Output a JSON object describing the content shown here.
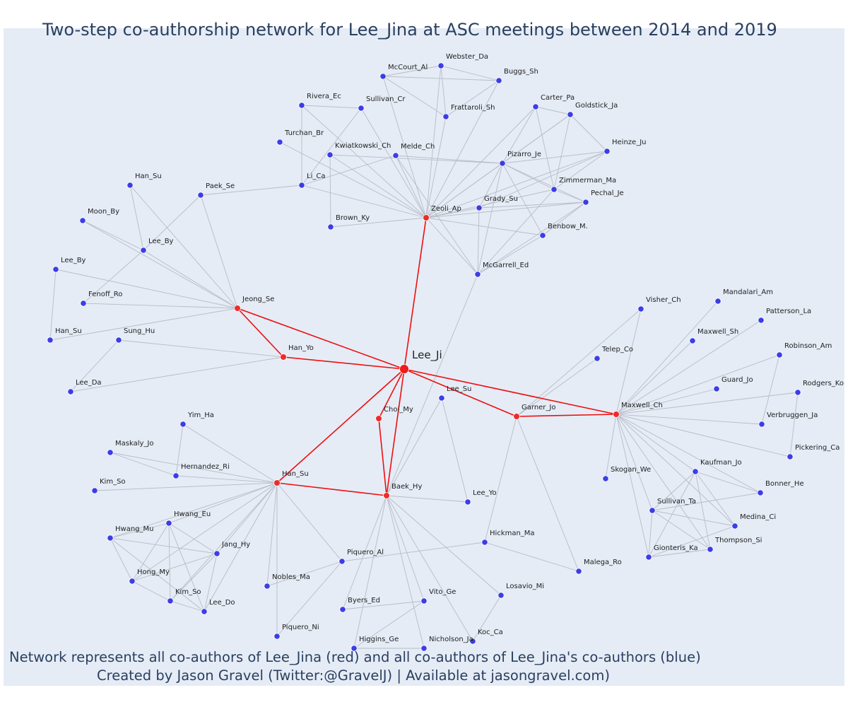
{
  "title": "Two-step co-authorship network for Lee_Jina at ASC meetings between 2014 and 2019",
  "caption_line1": "Network represents all co-authors of Lee_Jina (red) and all co-authors of Lee_Jina's co-authors (blue)",
  "caption_line2": "Created by Jason Gravel (Twitter:@GravelJ) | Available at jasongravel.com)",
  "colors": {
    "focal": "#ee1c1c",
    "coauthor": "#ee2b2b",
    "second": "#3b3ee6",
    "edge": "#b8bcc6",
    "red_edge": "#ee0f0f",
    "background": "#e5ecf6"
  },
  "nodes": [
    {
      "id": "Lee_Ji",
      "label": "Lee_Ji",
      "group": "focal"
    },
    {
      "id": "Zeoli_Ap",
      "label": "Zeoli_Ap",
      "group": "coauthor"
    },
    {
      "id": "Jeong_Se",
      "label": "Jeong_Se",
      "group": "coauthor"
    },
    {
      "id": "Han_Yo",
      "label": "Han_Yo",
      "group": "coauthor"
    },
    {
      "id": "Choi_My",
      "label": "Choi_My",
      "group": "coauthor"
    },
    {
      "id": "Han_Su_c",
      "label": "Han_Su",
      "group": "coauthor"
    },
    {
      "id": "Baek_Hy",
      "label": "Baek_Hy",
      "group": "coauthor"
    },
    {
      "id": "Garner_Jo",
      "label": "Garner_Jo",
      "group": "coauthor"
    },
    {
      "id": "Maxwell_Ch",
      "label": "Maxwell_Ch",
      "group": "coauthor"
    },
    {
      "id": "Webster_Da",
      "label": "Webster_Da",
      "group": "second"
    },
    {
      "id": "McCourt_Al",
      "label": "McCourt_Al",
      "group": "second"
    },
    {
      "id": "Buggs_Sh",
      "label": "Buggs_Sh",
      "group": "second"
    },
    {
      "id": "Rivera_Ec",
      "label": "Rivera_Ec",
      "group": "second"
    },
    {
      "id": "Sullivan_Cr",
      "label": "Sullivan_Cr",
      "group": "second"
    },
    {
      "id": "Frattaroli_Sh",
      "label": "Frattaroli_Sh",
      "group": "second"
    },
    {
      "id": "Carter_Pa",
      "label": "Carter_Pa",
      "group": "second"
    },
    {
      "id": "Goldstick_Ja",
      "label": "Goldstick_Ja",
      "group": "second"
    },
    {
      "id": "Turchan_Br",
      "label": "Turchan_Br",
      "group": "second"
    },
    {
      "id": "Kwiatkowski_Ch",
      "label": "Kwiatkowski_Ch",
      "group": "second"
    },
    {
      "id": "Melde_Ch",
      "label": "Melde_Ch",
      "group": "second"
    },
    {
      "id": "Heinze_Ju",
      "label": "Heinze_Ju",
      "group": "second"
    },
    {
      "id": "Pizarro_Je",
      "label": "Pizarro_Je",
      "group": "second"
    },
    {
      "id": "Han_Su_a",
      "label": "Han_Su",
      "group": "second"
    },
    {
      "id": "Li_Ca",
      "label": "Li_Ca",
      "group": "second"
    },
    {
      "id": "Paek_Se",
      "label": "Paek_Se",
      "group": "second"
    },
    {
      "id": "Zimmerman_Ma",
      "label": "Zimmerman_Ma",
      "group": "second"
    },
    {
      "id": "Pechal_Je",
      "label": "Pechal_Je",
      "group": "second"
    },
    {
      "id": "Grady_Su",
      "label": "Grady_Su",
      "group": "second"
    },
    {
      "id": "Moon_By",
      "label": "Moon_By",
      "group": "second"
    },
    {
      "id": "Brown_Ky",
      "label": "Brown_Ky",
      "group": "second"
    },
    {
      "id": "Lee_By_a",
      "label": "Lee_By",
      "group": "second"
    },
    {
      "id": "Benbow_M",
      "label": "Benbow_M.",
      "group": "second"
    },
    {
      "id": "Lee_By_b",
      "label": "Lee_By",
      "group": "second"
    },
    {
      "id": "McGarrell_Ed",
      "label": "McGarrell_Ed",
      "group": "second"
    },
    {
      "id": "Fenoff_Ro",
      "label": "Fenoff_Ro",
      "group": "second"
    },
    {
      "id": "Mandalari_Am",
      "label": "Mandalari_Am",
      "group": "second"
    },
    {
      "id": "Visher_Ch",
      "label": "Visher_Ch",
      "group": "second"
    },
    {
      "id": "Patterson_La",
      "label": "Patterson_La",
      "group": "second"
    },
    {
      "id": "Han_Su_b",
      "label": "Han_Su",
      "group": "second"
    },
    {
      "id": "Sung_Hu",
      "label": "Sung_Hu",
      "group": "second"
    },
    {
      "id": "Maxwell_Sh",
      "label": "Maxwell_Sh",
      "group": "second"
    },
    {
      "id": "Telep_Co",
      "label": "Telep_Co",
      "group": "second"
    },
    {
      "id": "Robinson_Am",
      "label": "Robinson_Am",
      "group": "second"
    },
    {
      "id": "Lee_Da",
      "label": "Lee_Da",
      "group": "second"
    },
    {
      "id": "Guard_Jo",
      "label": "Guard_Jo",
      "group": "second"
    },
    {
      "id": "Rodgers_Ko",
      "label": "Rodgers_Ko",
      "group": "second"
    },
    {
      "id": "Lee_Su",
      "label": "Lee_Su",
      "group": "second"
    },
    {
      "id": "Verbruggen_Ja",
      "label": "Verbruggen_Ja",
      "group": "second"
    },
    {
      "id": "Yim_Ha",
      "label": "Yim_Ha",
      "group": "second"
    },
    {
      "id": "Maskaly_Jo",
      "label": "Maskaly_Jo",
      "group": "second"
    },
    {
      "id": "Pickering_Ca",
      "label": "Pickering_Ca",
      "group": "second"
    },
    {
      "id": "Hernandez_Ri",
      "label": "Hernandez_Ri",
      "group": "second"
    },
    {
      "id": "Kaufman_Jo",
      "label": "Kaufman_Jo",
      "group": "second"
    },
    {
      "id": "Skogan_We",
      "label": "Skogan_We",
      "group": "second"
    },
    {
      "id": "Kim_So_a",
      "label": "Kim_So",
      "group": "second"
    },
    {
      "id": "Bonner_He",
      "label": "Bonner_He",
      "group": "second"
    },
    {
      "id": "Lee_Yo",
      "label": "Lee_Yo",
      "group": "second"
    },
    {
      "id": "Sullivan_Ta",
      "label": "Sullivan_Ta",
      "group": "second"
    },
    {
      "id": "Hwang_Eu",
      "label": "Hwang_Eu",
      "group": "second"
    },
    {
      "id": "Medina_Ci",
      "label": "Medina_Ci",
      "group": "second"
    },
    {
      "id": "Hwang_Mu",
      "label": "Hwang_Mu",
      "group": "second"
    },
    {
      "id": "Hickman_Ma",
      "label": "Hickman_Ma",
      "group": "second"
    },
    {
      "id": "Jang_Hy",
      "label": "Jang_Hy",
      "group": "second"
    },
    {
      "id": "Thompson_Si",
      "label": "Thompson_Si",
      "group": "second"
    },
    {
      "id": "Gionteris_Ka",
      "label": "Gionteris_Ka",
      "group": "second"
    },
    {
      "id": "Piquero_Al",
      "label": "Piquero_Al",
      "group": "second"
    },
    {
      "id": "Malega_Ro",
      "label": "Malega_Ro",
      "group": "second"
    },
    {
      "id": "Hong_My",
      "label": "Hong_My",
      "group": "second"
    },
    {
      "id": "Nobles_Ma",
      "label": "Nobles_Ma",
      "group": "second"
    },
    {
      "id": "Losavio_Mi",
      "label": "Losavio_Mi",
      "group": "second"
    },
    {
      "id": "Kim_So_b",
      "label": "Kim_So",
      "group": "second"
    },
    {
      "id": "Lee_Do",
      "label": "Lee_Do",
      "group": "second"
    },
    {
      "id": "Vito_Ge",
      "label": "Vito_Ge",
      "group": "second"
    },
    {
      "id": "Byers_Ed",
      "label": "Byers_Ed",
      "group": "second"
    },
    {
      "id": "Koc_Ca",
      "label": "Koc_Ca",
      "group": "second"
    },
    {
      "id": "Piquero_Ni",
      "label": "Piquero_Ni",
      "group": "second"
    },
    {
      "id": "Higgins_Ge",
      "label": "Higgins_Ge",
      "group": "second"
    },
    {
      "id": "Nicholson_Ja",
      "label": "Nicholson_Ja",
      "group": "second"
    }
  ],
  "edges": [
    [
      "Lee_Ji",
      "Zeoli_Ap",
      1
    ],
    [
      "Lee_Ji",
      "Jeong_Se",
      1
    ],
    [
      "Lee_Ji",
      "Han_Yo",
      1
    ],
    [
      "Lee_Ji",
      "Han_Su_c",
      1
    ],
    [
      "Lee_Ji",
      "Choi_My",
      1
    ],
    [
      "Lee_Ji",
      "Baek_Hy",
      1
    ],
    [
      "Lee_Ji",
      "Garner_Jo",
      1
    ],
    [
      "Lee_Ji",
      "Maxwell_Ch",
      1
    ],
    [
      "Jeong_Se",
      "Han_Yo",
      1
    ],
    [
      "Choi_My",
      "Baek_Hy",
      1
    ],
    [
      "Han_Su_c",
      "Baek_Hy",
      1
    ],
    [
      "Garner_Jo",
      "Maxwell_Ch",
      1
    ],
    [
      "Zeoli_Ap",
      "McCourt_Al",
      0
    ],
    [
      "Zeoli_Ap",
      "Webster_Da",
      0
    ],
    [
      "Zeoli_Ap",
      "Buggs_Sh",
      0
    ],
    [
      "Zeoli_Ap",
      "Frattaroli_Sh",
      0
    ],
    [
      "Zeoli_Ap",
      "Rivera_Ec",
      0
    ],
    [
      "Zeoli_Ap",
      "Sullivan_Cr",
      0
    ],
    [
      "Zeoli_Ap",
      "Kwiatkowski_Ch",
      0
    ],
    [
      "Zeoli_Ap",
      "Melde_Ch",
      0
    ],
    [
      "Zeoli_Ap",
      "Li_Ca",
      0
    ],
    [
      "Zeoli_Ap",
      "Brown_Ky",
      0
    ],
    [
      "Zeoli_Ap",
      "Carter_Pa",
      0
    ],
    [
      "Zeoli_Ap",
      "Goldstick_Ja",
      0
    ],
    [
      "Zeoli_Ap",
      "Pizarro_Je",
      0
    ],
    [
      "Zeoli_Ap",
      "Heinze_Ju",
      0
    ],
    [
      "Zeoli_Ap",
      "Zimmerman_Ma",
      0
    ],
    [
      "Zeoli_Ap",
      "Pechal_Je",
      0
    ],
    [
      "Zeoli_Ap",
      "Grady_Su",
      0
    ],
    [
      "Zeoli_Ap",
      "Benbow_M",
      0
    ],
    [
      "Zeoli_Ap",
      "McGarrell_Ed",
      0
    ],
    [
      "McCourt_Al",
      "Webster_Da",
      0
    ],
    [
      "McCourt_Al",
      "Buggs_Sh",
      0
    ],
    [
      "McCourt_Al",
      "Frattaroli_Sh",
      0
    ],
    [
      "Webster_Da",
      "Buggs_Sh",
      0
    ],
    [
      "Webster_Da",
      "Frattaroli_Sh",
      0
    ],
    [
      "Buggs_Sh",
      "Frattaroli_Sh",
      0
    ],
    [
      "Rivera_Ec",
      "Sullivan_Cr",
      0
    ],
    [
      "Rivera_Ec",
      "Li_Ca",
      0
    ],
    [
      "Sullivan_Cr",
      "Li_Ca",
      0
    ],
    [
      "Turchan_Br",
      "Zeoli_Ap",
      0
    ],
    [
      "Kwiatkowski_Ch",
      "Brown_Ky",
      0
    ],
    [
      "Melde_Ch",
      "Li_Ca",
      0
    ],
    [
      "Melde_Ch",
      "Pizarro_Je",
      0
    ],
    [
      "Melde_Ch",
      "McGarrell_Ed",
      0
    ],
    [
      "Li_Ca",
      "Paek_Se",
      0
    ],
    [
      "Kwiatkowski_Ch",
      "Pizarro_Je",
      0
    ],
    [
      "Carter_Pa",
      "Pizarro_Je",
      0
    ],
    [
      "Carter_Pa",
      "Zimmerman_Ma",
      0
    ],
    [
      "Carter_Pa",
      "Goldstick_Ja",
      0
    ],
    [
      "Goldstick_Ja",
      "Pizarro_Je",
      0
    ],
    [
      "Goldstick_Ja",
      "Heinze_Ju",
      0
    ],
    [
      "Goldstick_Ja",
      "Zimmerman_Ma",
      0
    ],
    [
      "Pizarro_Je",
      "Heinze_Ju",
      0
    ],
    [
      "Pizarro_Je",
      "Zimmerman_Ma",
      0
    ],
    [
      "Pizarro_Je",
      "Pechal_Je",
      0
    ],
    [
      "Pizarro_Je",
      "Benbow_M",
      0
    ],
    [
      "Pizarro_Je",
      "McGarrell_Ed",
      0
    ],
    [
      "Pizarro_Je",
      "Grady_Su",
      0
    ],
    [
      "Heinze_Ju",
      "Zimmerman_Ma",
      0
    ],
    [
      "Heinze_Ju",
      "Grady_Su",
      0
    ],
    [
      "Zimmerman_Ma",
      "Pechal_Je",
      0
    ],
    [
      "Zimmerman_Ma",
      "McGarrell_Ed",
      0
    ],
    [
      "Pechal_Je",
      "Benbow_M",
      0
    ],
    [
      "Pechal_Je",
      "McGarrell_Ed",
      0
    ],
    [
      "Grady_Su",
      "McGarrell_Ed",
      0
    ],
    [
      "Grady_Su",
      "Pechal_Je",
      0
    ],
    [
      "Benbow_M",
      "McGarrell_Ed",
      0
    ],
    [
      "McGarrell_Ed",
      "Baek_Hy",
      0
    ],
    [
      "Jeong_Se",
      "Paek_Se",
      0
    ],
    [
      "Jeong_Se",
      "Han_Su_a",
      0
    ],
    [
      "Jeong_Se",
      "Moon_By",
      0
    ],
    [
      "Jeong_Se",
      "Lee_By_a",
      0
    ],
    [
      "Jeong_Se",
      "Lee_By_b",
      0
    ],
    [
      "Jeong_Se",
      "Fenoff_Ro",
      0
    ],
    [
      "Jeong_Se",
      "Han_Su_b",
      0
    ],
    [
      "Han_Su_a",
      "Lee_By_a",
      0
    ],
    [
      "Moon_By",
      "Lee_By_a",
      0
    ],
    [
      "Paek_Se",
      "Lee_By_a",
      0
    ],
    [
      "Lee_By_a",
      "Fenoff_Ro",
      0
    ],
    [
      "Lee_By_b",
      "Han_Su_b",
      0
    ],
    [
      "Han_Yo",
      "Sung_Hu",
      0
    ],
    [
      "Han_Yo",
      "Lee_Da",
      0
    ],
    [
      "Sung_Hu",
      "Lee_Da",
      0
    ],
    [
      "Han_Su_c",
      "Yim_Ha",
      0
    ],
    [
      "Han_Su_c",
      "Maskaly_Jo",
      0
    ],
    [
      "Han_Su_c",
      "Hernandez_Ri",
      0
    ],
    [
      "Han_Su_c",
      "Kim_So_a",
      0
    ],
    [
      "Han_Su_c",
      "Hwang_Eu",
      0
    ],
    [
      "Han_Su_c",
      "Hwang_Mu",
      0
    ],
    [
      "Han_Su_c",
      "Jang_Hy",
      0
    ],
    [
      "Han_Su_c",
      "Hong_My",
      0
    ],
    [
      "Han_Su_c",
      "Kim_So_b",
      0
    ],
    [
      "Han_Su_c",
      "Lee_Do",
      0
    ],
    [
      "Han_Su_c",
      "Nobles_Ma",
      0
    ],
    [
      "Han_Su_c",
      "Piquero_Ni",
      0
    ],
    [
      "Han_Su_c",
      "Piquero_Al",
      0
    ],
    [
      "Yim_Ha",
      "Hernandez_Ri",
      0
    ],
    [
      "Maskaly_Jo",
      "Hernandez_Ri",
      0
    ],
    [
      "Hwang_Eu",
      "Hwang_Mu",
      0
    ],
    [
      "Hwang_Eu",
      "Jang_Hy",
      0
    ],
    [
      "Hwang_Eu",
      "Hong_My",
      0
    ],
    [
      "Hwang_Eu",
      "Kim_So_b",
      0
    ],
    [
      "Hwang_Eu",
      "Lee_Do",
      0
    ],
    [
      "Hwang_Mu",
      "Jang_Hy",
      0
    ],
    [
      "Hwang_Mu",
      "Hong_My",
      0
    ],
    [
      "Hwang_Mu",
      "Lee_Do",
      0
    ],
    [
      "Jang_Hy",
      "Hong_My",
      0
    ],
    [
      "Jang_Hy",
      "Kim_So_b",
      0
    ],
    [
      "Jang_Hy",
      "Lee_Do",
      0
    ],
    [
      "Hong_My",
      "Kim_So_b",
      0
    ],
    [
      "Kim_So_b",
      "Lee_Do",
      0
    ],
    [
      "Baek_Hy",
      "Lee_Su",
      0
    ],
    [
      "Baek_Hy",
      "Lee_Yo",
      0
    ],
    [
      "Baek_Hy",
      "Losavio_Mi",
      0
    ],
    [
      "Baek_Hy",
      "Vito_Ge",
      0
    ],
    [
      "Baek_Hy",
      "Byers_Ed",
      0
    ],
    [
      "Baek_Hy",
      "Higgins_Ge",
      0
    ],
    [
      "Baek_Hy",
      "Nicholson_Ja",
      0
    ],
    [
      "Baek_Hy",
      "Koc_Ca",
      0
    ],
    [
      "Piquero_Al",
      "Hickman_Ma",
      0
    ],
    [
      "Piquero_Al",
      "Nobles_Ma",
      0
    ],
    [
      "Piquero_Al",
      "Piquero_Ni",
      0
    ],
    [
      "Vito_Ge",
      "Byers_Ed",
      0
    ],
    [
      "Vito_Ge",
      "Higgins_Ge",
      0
    ],
    [
      "Higgins_Ge",
      "Nicholson_Ja",
      0
    ],
    [
      "Losavio_Mi",
      "Koc_Ca",
      0
    ],
    [
      "Lee_Su",
      "Lee_Yo",
      0
    ],
    [
      "Hickman_Ma",
      "Malega_Ro",
      0
    ],
    [
      "Garner_Jo",
      "Hickman_Ma",
      0
    ],
    [
      "Garner_Jo",
      "Malega_Ro",
      0
    ],
    [
      "Garner_Jo",
      "Telep_Co",
      0
    ],
    [
      "Garner_Jo",
      "Visher_Ch",
      0
    ],
    [
      "Maxwell_Ch",
      "Visher_Ch",
      0
    ],
    [
      "Maxwell_Ch",
      "Mandalari_Am",
      0
    ],
    [
      "Maxwell_Ch",
      "Patterson_La",
      0
    ],
    [
      "Maxwell_Ch",
      "Maxwell_Sh",
      0
    ],
    [
      "Maxwell_Ch",
      "Robinson_Am",
      0
    ],
    [
      "Maxwell_Ch",
      "Guard_Jo",
      0
    ],
    [
      "Maxwell_Ch",
      "Rodgers_Ko",
      0
    ],
    [
      "Maxwell_Ch",
      "Verbruggen_Ja",
      0
    ],
    [
      "Maxwell_Ch",
      "Pickering_Ca",
      0
    ],
    [
      "Maxwell_Ch",
      "Kaufman_Jo",
      0
    ],
    [
      "Maxwell_Ch",
      "Skogan_We",
      0
    ],
    [
      "Maxwell_Ch",
      "Bonner_He",
      0
    ],
    [
      "Maxwell_Ch",
      "Sullivan_Ta",
      0
    ],
    [
      "Maxwell_Ch",
      "Medina_Ci",
      0
    ],
    [
      "Maxwell_Ch",
      "Thompson_Si",
      0
    ],
    [
      "Maxwell_Ch",
      "Gionteris_Ka",
      0
    ],
    [
      "Robinson_Am",
      "Verbruggen_Ja",
      0
    ],
    [
      "Rodgers_Ko",
      "Pickering_Ca",
      0
    ],
    [
      "Kaufman_Jo",
      "Bonner_He",
      0
    ],
    [
      "Kaufman_Jo",
      "Sullivan_Ta",
      0
    ],
    [
      "Kaufman_Jo",
      "Medina_Ci",
      0
    ],
    [
      "Kaufman_Jo",
      "Thompson_Si",
      0
    ],
    [
      "Kaufman_Jo",
      "Gionteris_Ka",
      0
    ],
    [
      "Sullivan_Ta",
      "Bonner_He",
      0
    ],
    [
      "Sullivan_Ta",
      "Medina_Ci",
      0
    ],
    [
      "Sullivan_Ta",
      "Thompson_Si",
      0
    ],
    [
      "Sullivan_Ta",
      "Gionteris_Ka",
      0
    ],
    [
      "Medina_Ci",
      "Gionteris_Ka",
      0
    ],
    [
      "Thompson_Si",
      "Gionteris_Ka",
      0
    ]
  ]
}
